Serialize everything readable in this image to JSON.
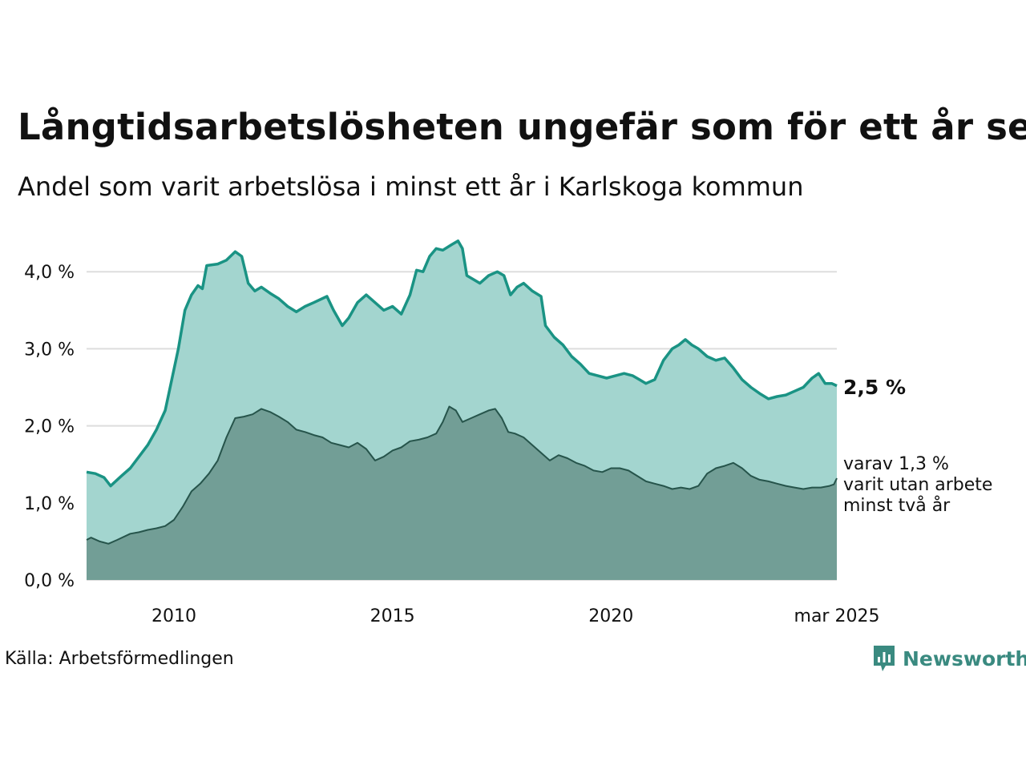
{
  "header": {
    "title": "Långtidsarbetslösheten ungefär som för ett år sen",
    "subtitle": "Andel som varit arbetslösa i minst ett år i Karlskoga kommun"
  },
  "footer": {
    "source": "Källa: Arbetsförmedlingen",
    "brand": "Newsworthy"
  },
  "colors": {
    "area_total": "#a3d5cf",
    "line_total": "#1a9384",
    "area_long": "#729e96",
    "line_long": "#26544b",
    "grid": "#dddddd",
    "brand": "#3a8a80"
  },
  "chart_data": {
    "type": "area",
    "x_ticks": [
      {
        "x": 2010,
        "label": "2010"
      },
      {
        "x": 2015,
        "label": "2015"
      },
      {
        "x": 2020,
        "label": "2020"
      },
      {
        "x": 2025.167,
        "label": "mar 2025"
      }
    ],
    "y_ticks": [
      {
        "y": 0,
        "label": "0,0 %"
      },
      {
        "y": 1,
        "label": "1,0 %"
      },
      {
        "y": 2,
        "label": "2,0 %"
      },
      {
        "y": 3,
        "label": "3,0 %"
      },
      {
        "y": 4,
        "label": "4,0 %"
      }
    ],
    "xlim": [
      2008.0,
      2025.167
    ],
    "ylim": [
      0,
      4.5
    ],
    "series": [
      {
        "key": "total",
        "end_label": "2,5 %",
        "points": [
          [
            2008.0,
            1.4
          ],
          [
            2008.2,
            1.38
          ],
          [
            2008.4,
            1.33
          ],
          [
            2008.55,
            1.22
          ],
          [
            2008.8,
            1.35
          ],
          [
            2009.0,
            1.45
          ],
          [
            2009.2,
            1.6
          ],
          [
            2009.4,
            1.75
          ],
          [
            2009.6,
            1.95
          ],
          [
            2009.8,
            2.2
          ],
          [
            2009.95,
            2.6
          ],
          [
            2010.1,
            3.0
          ],
          [
            2010.25,
            3.5
          ],
          [
            2010.4,
            3.7
          ],
          [
            2010.55,
            3.82
          ],
          [
            2010.65,
            3.78
          ],
          [
            2010.75,
            4.08
          ],
          [
            2011.0,
            4.1
          ],
          [
            2011.2,
            4.15
          ],
          [
            2011.4,
            4.26
          ],
          [
            2011.55,
            4.2
          ],
          [
            2011.7,
            3.85
          ],
          [
            2011.85,
            3.75
          ],
          [
            2012.0,
            3.8
          ],
          [
            2012.2,
            3.72
          ],
          [
            2012.4,
            3.65
          ],
          [
            2012.6,
            3.55
          ],
          [
            2012.8,
            3.48
          ],
          [
            2013.0,
            3.55
          ],
          [
            2013.2,
            3.6
          ],
          [
            2013.5,
            3.68
          ],
          [
            2013.65,
            3.5
          ],
          [
            2013.85,
            3.3
          ],
          [
            2014.0,
            3.4
          ],
          [
            2014.2,
            3.6
          ],
          [
            2014.4,
            3.7
          ],
          [
            2014.6,
            3.6
          ],
          [
            2014.8,
            3.5
          ],
          [
            2015.0,
            3.55
          ],
          [
            2015.2,
            3.45
          ],
          [
            2015.4,
            3.7
          ],
          [
            2015.55,
            4.02
          ],
          [
            2015.7,
            4.0
          ],
          [
            2015.85,
            4.2
          ],
          [
            2016.0,
            4.3
          ],
          [
            2016.15,
            4.28
          ],
          [
            2016.35,
            4.35
          ],
          [
            2016.5,
            4.4
          ],
          [
            2016.6,
            4.3
          ],
          [
            2016.7,
            3.95
          ],
          [
            2016.85,
            3.9
          ],
          [
            2017.0,
            3.85
          ],
          [
            2017.2,
            3.95
          ],
          [
            2017.4,
            4.0
          ],
          [
            2017.55,
            3.95
          ],
          [
            2017.7,
            3.7
          ],
          [
            2017.85,
            3.8
          ],
          [
            2018.0,
            3.85
          ],
          [
            2018.2,
            3.75
          ],
          [
            2018.4,
            3.68
          ],
          [
            2018.5,
            3.3
          ],
          [
            2018.7,
            3.15
          ],
          [
            2018.9,
            3.05
          ],
          [
            2019.1,
            2.9
          ],
          [
            2019.3,
            2.8
          ],
          [
            2019.5,
            2.68
          ],
          [
            2019.7,
            2.65
          ],
          [
            2019.9,
            2.62
          ],
          [
            2020.1,
            2.65
          ],
          [
            2020.3,
            2.68
          ],
          [
            2020.5,
            2.65
          ],
          [
            2020.65,
            2.6
          ],
          [
            2020.8,
            2.55
          ],
          [
            2021.0,
            2.6
          ],
          [
            2021.2,
            2.85
          ],
          [
            2021.4,
            3.0
          ],
          [
            2021.55,
            3.05
          ],
          [
            2021.7,
            3.12
          ],
          [
            2021.85,
            3.05
          ],
          [
            2022.0,
            3.0
          ],
          [
            2022.2,
            2.9
          ],
          [
            2022.4,
            2.85
          ],
          [
            2022.6,
            2.88
          ],
          [
            2022.8,
            2.75
          ],
          [
            2023.0,
            2.6
          ],
          [
            2023.2,
            2.5
          ],
          [
            2023.4,
            2.42
          ],
          [
            2023.6,
            2.35
          ],
          [
            2023.8,
            2.38
          ],
          [
            2024.0,
            2.4
          ],
          [
            2024.2,
            2.45
          ],
          [
            2024.4,
            2.5
          ],
          [
            2024.6,
            2.62
          ],
          [
            2024.75,
            2.68
          ],
          [
            2024.9,
            2.55
          ],
          [
            2025.05,
            2.55
          ],
          [
            2025.167,
            2.52
          ]
        ]
      },
      {
        "key": "long",
        "end_label_lines": [
          "varav 1,3 %",
          "varit utan arbete",
          "minst två år"
        ],
        "points": [
          [
            2008.0,
            0.52
          ],
          [
            2008.1,
            0.55
          ],
          [
            2008.3,
            0.5
          ],
          [
            2008.5,
            0.47
          ],
          [
            2008.7,
            0.52
          ],
          [
            2009.0,
            0.6
          ],
          [
            2009.2,
            0.62
          ],
          [
            2009.4,
            0.65
          ],
          [
            2009.6,
            0.67
          ],
          [
            2009.8,
            0.7
          ],
          [
            2010.0,
            0.78
          ],
          [
            2010.2,
            0.95
          ],
          [
            2010.4,
            1.15
          ],
          [
            2010.6,
            1.25
          ],
          [
            2010.8,
            1.38
          ],
          [
            2011.0,
            1.55
          ],
          [
            2011.2,
            1.85
          ],
          [
            2011.4,
            2.1
          ],
          [
            2011.6,
            2.12
          ],
          [
            2011.8,
            2.15
          ],
          [
            2012.0,
            2.22
          ],
          [
            2012.2,
            2.18
          ],
          [
            2012.4,
            2.12
          ],
          [
            2012.6,
            2.05
          ],
          [
            2012.8,
            1.95
          ],
          [
            2013.0,
            1.92
          ],
          [
            2013.2,
            1.88
          ],
          [
            2013.4,
            1.85
          ],
          [
            2013.6,
            1.78
          ],
          [
            2013.8,
            1.75
          ],
          [
            2014.0,
            1.72
          ],
          [
            2014.2,
            1.78
          ],
          [
            2014.4,
            1.7
          ],
          [
            2014.6,
            1.55
          ],
          [
            2014.8,
            1.6
          ],
          [
            2015.0,
            1.68
          ],
          [
            2015.2,
            1.72
          ],
          [
            2015.4,
            1.8
          ],
          [
            2015.6,
            1.82
          ],
          [
            2015.8,
            1.85
          ],
          [
            2016.0,
            1.9
          ],
          [
            2016.15,
            2.05
          ],
          [
            2016.3,
            2.25
          ],
          [
            2016.45,
            2.2
          ],
          [
            2016.6,
            2.05
          ],
          [
            2016.8,
            2.1
          ],
          [
            2017.0,
            2.15
          ],
          [
            2017.2,
            2.2
          ],
          [
            2017.35,
            2.22
          ],
          [
            2017.5,
            2.1
          ],
          [
            2017.65,
            1.92
          ],
          [
            2017.8,
            1.9
          ],
          [
            2018.0,
            1.85
          ],
          [
            2018.2,
            1.75
          ],
          [
            2018.4,
            1.65
          ],
          [
            2018.6,
            1.55
          ],
          [
            2018.8,
            1.62
          ],
          [
            2019.0,
            1.58
          ],
          [
            2019.2,
            1.52
          ],
          [
            2019.4,
            1.48
          ],
          [
            2019.6,
            1.42
          ],
          [
            2019.8,
            1.4
          ],
          [
            2020.0,
            1.45
          ],
          [
            2020.2,
            1.45
          ],
          [
            2020.4,
            1.42
          ],
          [
            2020.6,
            1.35
          ],
          [
            2020.8,
            1.28
          ],
          [
            2021.0,
            1.25
          ],
          [
            2021.2,
            1.22
          ],
          [
            2021.4,
            1.18
          ],
          [
            2021.6,
            1.2
          ],
          [
            2021.8,
            1.18
          ],
          [
            2022.0,
            1.22
          ],
          [
            2022.2,
            1.38
          ],
          [
            2022.4,
            1.45
          ],
          [
            2022.6,
            1.48
          ],
          [
            2022.8,
            1.52
          ],
          [
            2023.0,
            1.45
          ],
          [
            2023.2,
            1.35
          ],
          [
            2023.4,
            1.3
          ],
          [
            2023.6,
            1.28
          ],
          [
            2023.8,
            1.25
          ],
          [
            2024.0,
            1.22
          ],
          [
            2024.2,
            1.2
          ],
          [
            2024.4,
            1.18
          ],
          [
            2024.6,
            1.2
          ],
          [
            2024.8,
            1.2
          ],
          [
            2025.0,
            1.22
          ],
          [
            2025.1,
            1.24
          ],
          [
            2025.167,
            1.32
          ]
        ]
      }
    ]
  }
}
